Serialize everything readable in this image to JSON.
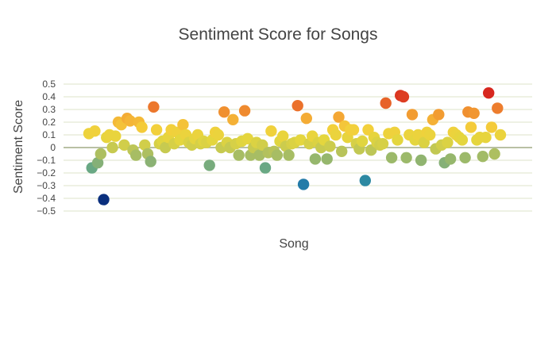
{
  "chart_data": {
    "type": "scatter",
    "title": "Sentiment Score for Songs",
    "xlabel": "Song",
    "ylabel": "Sentiment Score",
    "ylim": [
      -0.5,
      0.5
    ],
    "yticks": [
      "0.5",
      "0.4",
      "0.3",
      "0.2",
      "0.1",
      "0",
      "−0.1",
      "−0.2",
      "−0.3",
      "−0.4",
      "−0.5"
    ],
    "ytick_values": [
      0.5,
      0.4,
      0.3,
      0.2,
      0.1,
      0,
      -0.1,
      -0.2,
      -0.3,
      -0.4,
      -0.5
    ],
    "xtick_labels": "none",
    "grid": true,
    "colorscale": [
      "#0a2f7e",
      "#1a6fae",
      "#3a9a9a",
      "#7fae7a",
      "#b5c25c",
      "#e3d63e",
      "#f4cf3b",
      "#f4a634",
      "#ea6d2a",
      "#d7271e"
    ],
    "values": [
      0.11,
      -0.16,
      0.13,
      -0.12,
      -0.05,
      -0.41,
      0.08,
      0.1,
      0.0,
      0.09,
      0.2,
      0.18,
      0.02,
      0.23,
      0.21,
      -0.02,
      -0.06,
      0.2,
      0.16,
      0.02,
      -0.05,
      -0.11,
      0.32,
      0.14,
      0.03,
      0.05,
      0.0,
      0.08,
      0.14,
      0.03,
      0.12,
      0.06,
      0.18,
      0.1,
      0.04,
      0.02,
      0.07,
      0.1,
      0.03,
      0.05,
      0.04,
      -0.14,
      0.06,
      0.12,
      0.1,
      0.0,
      0.28,
      0.04,
      0.0,
      0.22,
      0.03,
      -0.06,
      0.05,
      0.29,
      0.07,
      -0.06,
      0.0,
      0.04,
      -0.06,
      0.02,
      -0.16,
      -0.04,
      0.13,
      -0.03,
      -0.06,
      0.05,
      0.09,
      0.01,
      -0.06,
      0.03,
      0.04,
      0.33,
      0.06,
      -0.29,
      0.23,
      0.03,
      0.09,
      -0.09,
      0.04,
      0.0,
      0.06,
      -0.09,
      0.01,
      0.14,
      0.1,
      0.24,
      -0.03,
      0.17,
      0.08,
      0.14,
      0.14,
      0.03,
      -0.01,
      0.05,
      -0.26,
      0.14,
      -0.02,
      0.08,
      0.04,
      0.02,
      0.03,
      0.35,
      0.11,
      -0.08,
      0.12,
      0.06,
      0.41,
      0.4,
      -0.08,
      0.1,
      0.26,
      0.06,
      0.1,
      -0.1,
      0.04,
      0.12,
      0.1,
      0.22,
      -0.01,
      0.26,
      0.02,
      -0.12,
      0.04,
      -0.09,
      0.12,
      0.1,
      0.08,
      0.06,
      -0.08,
      0.28,
      0.16,
      0.27,
      0.06,
      0.08,
      -0.07,
      0.08,
      0.43,
      0.16,
      -0.05,
      0.31,
      0.1
    ]
  }
}
